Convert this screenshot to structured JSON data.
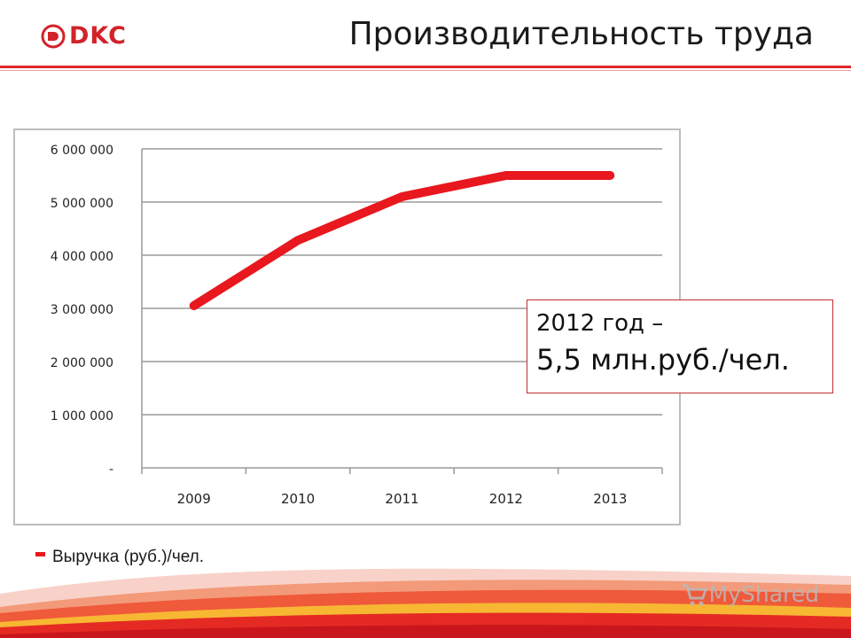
{
  "header": {
    "logo_text": "DKC",
    "title": "Производительность труда"
  },
  "callout": {
    "line1": "2012 год –",
    "line2": "5,5 млн.руб./чел."
  },
  "colors": {
    "accent": "#e8181e",
    "brand": "#d2232a",
    "grid": "#9a9a9a"
  },
  "watermark": {
    "text": "MyShared",
    "icon": "cart-icon"
  },
  "chart_data": {
    "type": "line",
    "categories": [
      "2009",
      "2010",
      "2011",
      "2012",
      "2013"
    ],
    "series": [
      {
        "name": "Выручка (руб.)/чел.",
        "values": [
          3050000,
          4280000,
          5100000,
          5500000,
          5500000
        ],
        "color": "#e8181e"
      }
    ],
    "y_ticks": [
      {
        "value": 0,
        "label": "-"
      },
      {
        "value": 1000000,
        "label": "1 000 000"
      },
      {
        "value": 2000000,
        "label": "2 000 000"
      },
      {
        "value": 3000000,
        "label": "3 000 000"
      },
      {
        "value": 4000000,
        "label": "4 000 000"
      },
      {
        "value": 5000000,
        "label": "5 000 000"
      },
      {
        "value": 6000000,
        "label": "6 000 000"
      }
    ],
    "ylim": [
      0,
      6000000
    ],
    "grid": true,
    "legend": "bottom-left"
  }
}
